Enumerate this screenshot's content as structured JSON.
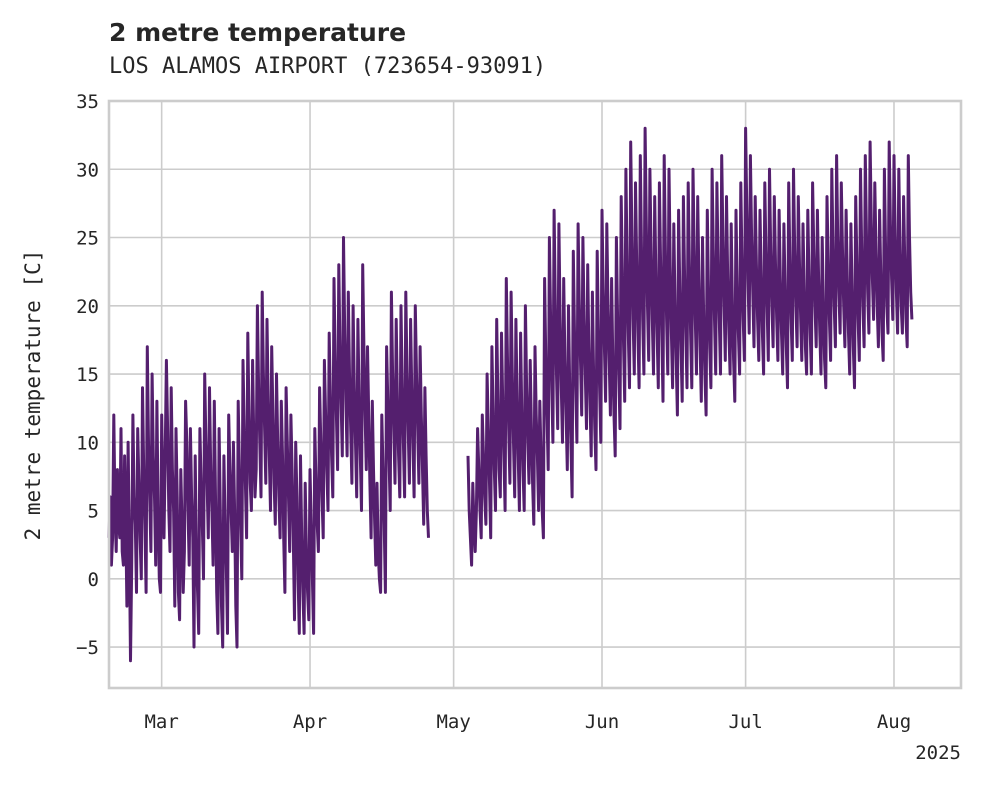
{
  "chart_data": {
    "type": "line",
    "title": "2 metre temperature",
    "subtitle": "LOS ALAMOS AIRPORT (723654-93091)",
    "ylabel": "2 metre temperature [C]",
    "xlabel": "",
    "year_label": "2025",
    "ylim": [
      -8,
      35
    ],
    "yticks": [
      -5,
      0,
      5,
      10,
      15,
      20,
      25,
      30,
      35
    ],
    "xlim": [
      "2025-02-18",
      "2025-08-15"
    ],
    "xticks": [
      {
        "date": "2025-03-01",
        "label": "Mar"
      },
      {
        "date": "2025-04-01",
        "label": "Apr"
      },
      {
        "date": "2025-05-01",
        "label": "May"
      },
      {
        "date": "2025-06-01",
        "label": "Jun"
      },
      {
        "date": "2025-07-01",
        "label": "Jul"
      },
      {
        "date": "2025-08-01",
        "label": "Aug"
      }
    ],
    "grid": true,
    "series": [
      {
        "color": "#541f6e",
        "points_per_day": 4,
        "segments": [
          {
            "start": "2025-02-18",
            "values": [
              3,
              6,
              1,
              3,
              12,
              5,
              2,
              8,
              4,
              3,
              11,
              2,
              1,
              9,
              4,
              -2,
              10,
              3,
              -6,
              1,
              12,
              6,
              4,
              -1,
              11,
              7,
              3,
              0,
              14,
              8,
              4,
              -1,
              17,
              10,
              6,
              2,
              15,
              9,
              6,
              1,
              13,
              5,
              0,
              -1,
              12,
              7,
              3,
              9,
              16,
              11,
              5,
              2,
              14,
              8,
              5,
              -2,
              11,
              6,
              -1,
              -3,
              8,
              4,
              -1,
              2,
              13,
              10,
              5,
              1,
              11,
              6,
              3,
              -5,
              9,
              2,
              -1,
              -4,
              11,
              7,
              4,
              0,
              15,
              10,
              7,
              3,
              14,
              8,
              5,
              1,
              13,
              6,
              -1,
              -4,
              11,
              5,
              -2,
              -5,
              9,
              4,
              1,
              -4,
              12,
              8,
              5,
              2,
              10,
              5,
              -2,
              -5,
              13,
              8,
              4,
              0,
              16,
              11,
              7,
              3,
              18,
              12,
              7,
              5,
              16,
              10,
              6,
              8,
              20,
              14,
              10,
              6,
              21,
              15,
              11,
              7,
              19,
              13,
              9,
              5,
              17,
              12,
              7,
              4,
              15,
              10,
              6,
              3,
              13,
              9,
              3,
              -1,
              14,
              10,
              6,
              2,
              12,
              8,
              3,
              -3,
              10,
              6,
              0,
              -4,
              9,
              3,
              -1,
              -4,
              7,
              2,
              -1,
              -3,
              8,
              4,
              0,
              -4,
              11,
              7,
              4,
              2,
              14,
              10,
              6,
              3,
              16,
              12,
              8,
              5,
              18,
              13,
              9,
              6,
              22,
              16,
              12,
              8,
              23,
              17,
              13,
              9,
              25,
              18,
              13,
              9,
              21,
              15,
              11,
              7,
              20,
              14,
              10,
              6,
              19,
              13,
              9,
              5,
              23,
              17,
              12,
              8,
              17,
              12,
              7,
              3,
              13,
              8,
              4,
              1,
              7,
              2,
              0,
              -1,
              12,
              8,
              4,
              -1,
              17,
              13,
              9,
              5,
              21,
              15,
              11,
              7,
              19,
              13,
              9,
              6,
              20,
              14,
              10,
              6,
              21,
              15,
              11,
              7,
              19,
              14,
              10,
              6,
              20,
              15,
              11,
              7,
              17,
              12,
              8,
              4,
              14,
              9,
              5,
              3
            ]
          },
          {
            "start": "2025-05-04",
            "values": [
              9,
              5,
              3,
              1,
              7,
              4,
              2,
              5,
              11,
              8,
              5,
              3,
              12,
              9,
              6,
              4,
              15,
              11,
              7,
              3,
              17,
              12,
              8,
              5,
              19,
              13,
              8,
              6,
              18,
              13,
              9,
              5,
              22,
              16,
              11,
              7,
              21,
              15,
              10,
              6,
              19,
              13,
              9,
              5,
              18,
              12,
              8,
              5,
              20,
              14,
              10,
              7,
              16,
              11,
              7,
              4,
              17,
              12,
              9,
              5,
              13,
              9,
              5,
              3,
              22,
              16,
              12,
              8,
              25,
              19,
              14,
              10,
              27,
              20,
              15,
              11,
              26,
              19,
              14,
              10,
              22,
              16,
              12,
              8,
              20,
              14,
              10,
              6,
              24,
              18,
              14,
              10,
              26,
              20,
              16,
              12,
              25,
              19,
              15,
              11,
              23,
              17,
              13,
              9,
              21,
              15,
              11,
              8,
              24,
              18,
              14,
              10,
              27,
              21,
              17,
              13,
              26,
              20,
              16,
              12,
              22,
              16,
              12,
              9,
              25,
              19,
              15,
              11,
              28,
              22,
              17,
              13,
              30,
              23,
              18,
              14,
              32,
              25,
              19,
              15,
              29,
              23,
              18,
              14,
              31,
              24,
              19,
              15,
              33,
              26,
              20,
              16,
              30,
              24,
              19,
              15,
              28,
              22,
              18,
              14,
              29,
              23,
              18,
              13,
              31,
              24,
              19,
              15,
              30,
              23,
              18,
              14,
              26,
              20,
              16,
              12,
              27,
              21,
              17,
              13,
              28,
              22,
              18,
              14,
              29,
              23,
              18,
              14,
              30,
              24,
              19,
              15,
              28,
              22,
              17,
              13,
              25,
              19,
              15,
              12,
              27,
              21,
              17,
              14,
              30,
              24,
              19,
              15,
              29,
              23,
              19,
              15,
              31,
              25,
              20,
              16,
              28,
              22,
              18,
              15,
              26,
              20,
              16,
              13,
              27,
              21,
              18,
              15,
              29,
              23,
              19,
              16,
              33,
              27,
              22,
              18,
              31,
              25,
              21,
              17,
              28,
              23,
              19,
              16,
              27,
              22,
              18,
              15,
              29,
              24,
              20,
              16,
              30,
              24,
              20,
              17,
              28,
              23,
              19,
              16,
              27,
              22,
              18,
              15,
              26,
              21,
              17,
              14,
              29,
              23,
              19,
              16,
              30,
              24,
              20,
              17,
              28,
              23,
              19,
              16,
              26,
              21,
              17,
              15,
              27,
              22,
              18,
              15,
              29,
              24,
              20,
              17,
              27,
              22,
              18,
              15,
              25,
              20,
              16,
              14,
              28,
              23,
              19,
              16,
              30,
              24,
              20,
              17,
              31,
              25,
              21,
              18,
              29,
              24,
              20,
              17,
              27,
              22,
              18,
              15,
              26,
              21,
              17,
              14,
              28,
              23,
              19,
              16,
              30,
              24,
              20,
              17,
              31,
              25,
              21,
              18,
              32,
              26,
              22,
              19,
              29,
              24,
              20,
              17,
              27,
              22,
              18,
              16,
              30,
              24,
              20,
              18,
              32,
              26,
              22,
              19,
              31,
              25,
              21,
              18,
              30,
              24,
              20,
              18,
              28,
              23,
              19,
              17,
              31,
              25,
              21,
              19
            ]
          }
        ]
      }
    ]
  }
}
